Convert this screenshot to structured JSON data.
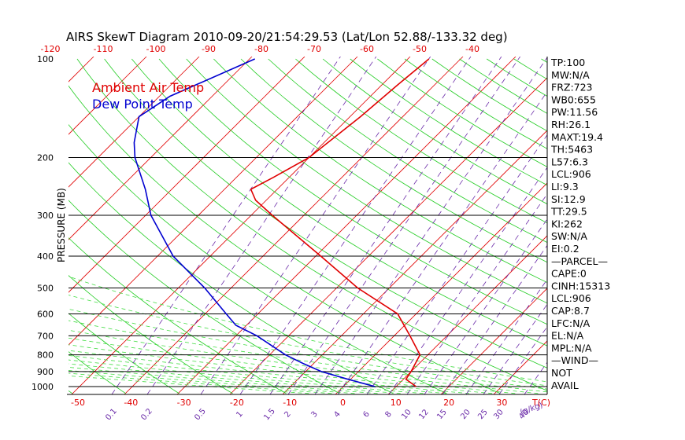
{
  "chart_data": {
    "type": "line",
    "title": "AIRS SkewT Diagram 2010-09-20/21:54:29.53 (Lat/Lon 52.88/-133.32 deg)",
    "ylabel": "PRESSURE (MB)",
    "top_ticks": [
      "-120",
      "-110",
      "-100",
      "-90",
      "-80",
      "-70",
      "-60",
      "-50",
      "-40"
    ],
    "bottom_ticks": [
      "-50",
      "-40",
      "-30",
      "-20",
      "-10",
      "0",
      "10",
      "20",
      "30"
    ],
    "bottom_axis_unit": "T(C)",
    "pressure_ticks": [
      "100",
      "200",
      "300",
      "400",
      "500",
      "600",
      "700",
      "800",
      "900",
      "1000"
    ],
    "mixing_ratio_labels": [
      "0.1",
      "0.2",
      "0.5",
      "1",
      "1.5",
      "2",
      "3",
      "4",
      "6",
      "8",
      "10",
      "12",
      "15",
      "20",
      "25",
      "30",
      "40"
    ],
    "mixing_ratio_unit": "(g/kg)",
    "legend": [
      {
        "label": "Ambient Air Temp",
        "color": "#e00000"
      },
      {
        "label": "Dew Point Temp",
        "color": "#0000d0"
      }
    ],
    "series": [
      {
        "name": "Ambient Air Temp",
        "color": "#e00000",
        "points": [
          [
            1000,
            13.8
          ],
          [
            950,
            10.5
          ],
          [
            900,
            10.0
          ],
          [
            800,
            8.5
          ],
          [
            700,
            3.0
          ],
          [
            600,
            -3.5
          ],
          [
            500,
            -16.0
          ],
          [
            400,
            -29.0
          ],
          [
            300,
            -46.0
          ],
          [
            270,
            -52.0
          ],
          [
            250,
            -55.0
          ],
          [
            230,
            -53.0
          ],
          [
            200,
            -50.0
          ],
          [
            150,
            -48.0
          ],
          [
            120,
            -47.0
          ],
          [
            100,
            -46.0
          ]
        ]
      },
      {
        "name": "Dew Point Temp",
        "color": "#0000d0",
        "points": [
          [
            1000,
            6.0
          ],
          [
            950,
            -0.5
          ],
          [
            900,
            -7.0
          ],
          [
            850,
            -12.0
          ],
          [
            800,
            -17.0
          ],
          [
            700,
            -26.0
          ],
          [
            650,
            -32.0
          ],
          [
            600,
            -36.0
          ],
          [
            500,
            -45.0
          ],
          [
            400,
            -57.0
          ],
          [
            300,
            -69.0
          ],
          [
            250,
            -75.0
          ],
          [
            200,
            -83.0
          ],
          [
            180,
            -86.0
          ],
          [
            150,
            -90.0
          ],
          [
            130,
            -88.0
          ],
          [
            100,
            -79.0
          ]
        ]
      }
    ],
    "indices": [
      "TP:100",
      "MW:N/A",
      "FRZ:723",
      "WB0:655",
      "PW:11.56",
      "RH:26.1",
      "MAXT:19.4",
      "TH:5463",
      "L57:6.3",
      "LCL:906",
      "LI:9.3",
      "SI:12.9",
      "TT:29.5",
      "KI:262",
      "SW:N/A",
      "EI:0.2",
      "—PARCEL—",
      "CAPE:0",
      "CINH:15313",
      "LCL:906",
      "CAP:8.7",
      "LFC:N/A",
      "EL:N/A",
      "MPL:N/A",
      "—WIND—",
      "NOT",
      "AVAIL"
    ]
  }
}
